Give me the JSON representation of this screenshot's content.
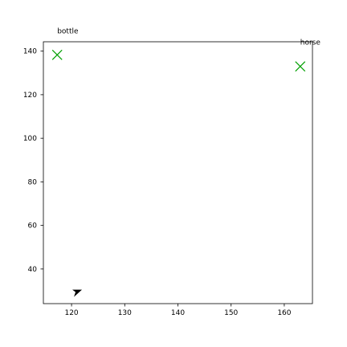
{
  "chart_data": {
    "type": "scatter",
    "title": "",
    "xlabel": "",
    "ylabel": "",
    "xlim": [
      114.7,
      165.3
    ],
    "ylim": [
      24.1,
      144.3
    ],
    "x_ticks": [
      120,
      130,
      140,
      150,
      160
    ],
    "y_ticks": [
      40,
      60,
      80,
      100,
      120,
      140
    ],
    "grid": false,
    "points": [
      {
        "x": 117.3,
        "y": 138.3,
        "marker": "x",
        "color": "#00a000",
        "label": ""
      },
      {
        "x": 163.0,
        "y": 133.0,
        "marker": "x",
        "color": "#00a000",
        "label": ""
      },
      {
        "x": 120.9,
        "y": 29.4,
        "marker": "arrowhead",
        "color": "#000000",
        "label": ""
      }
    ],
    "annotations": [
      {
        "text": "bottle",
        "x": 117.3,
        "y": 138.3,
        "placement": "above"
      },
      {
        "text": "horse",
        "x": 163.0,
        "y": 133.0,
        "placement": "above"
      }
    ]
  }
}
